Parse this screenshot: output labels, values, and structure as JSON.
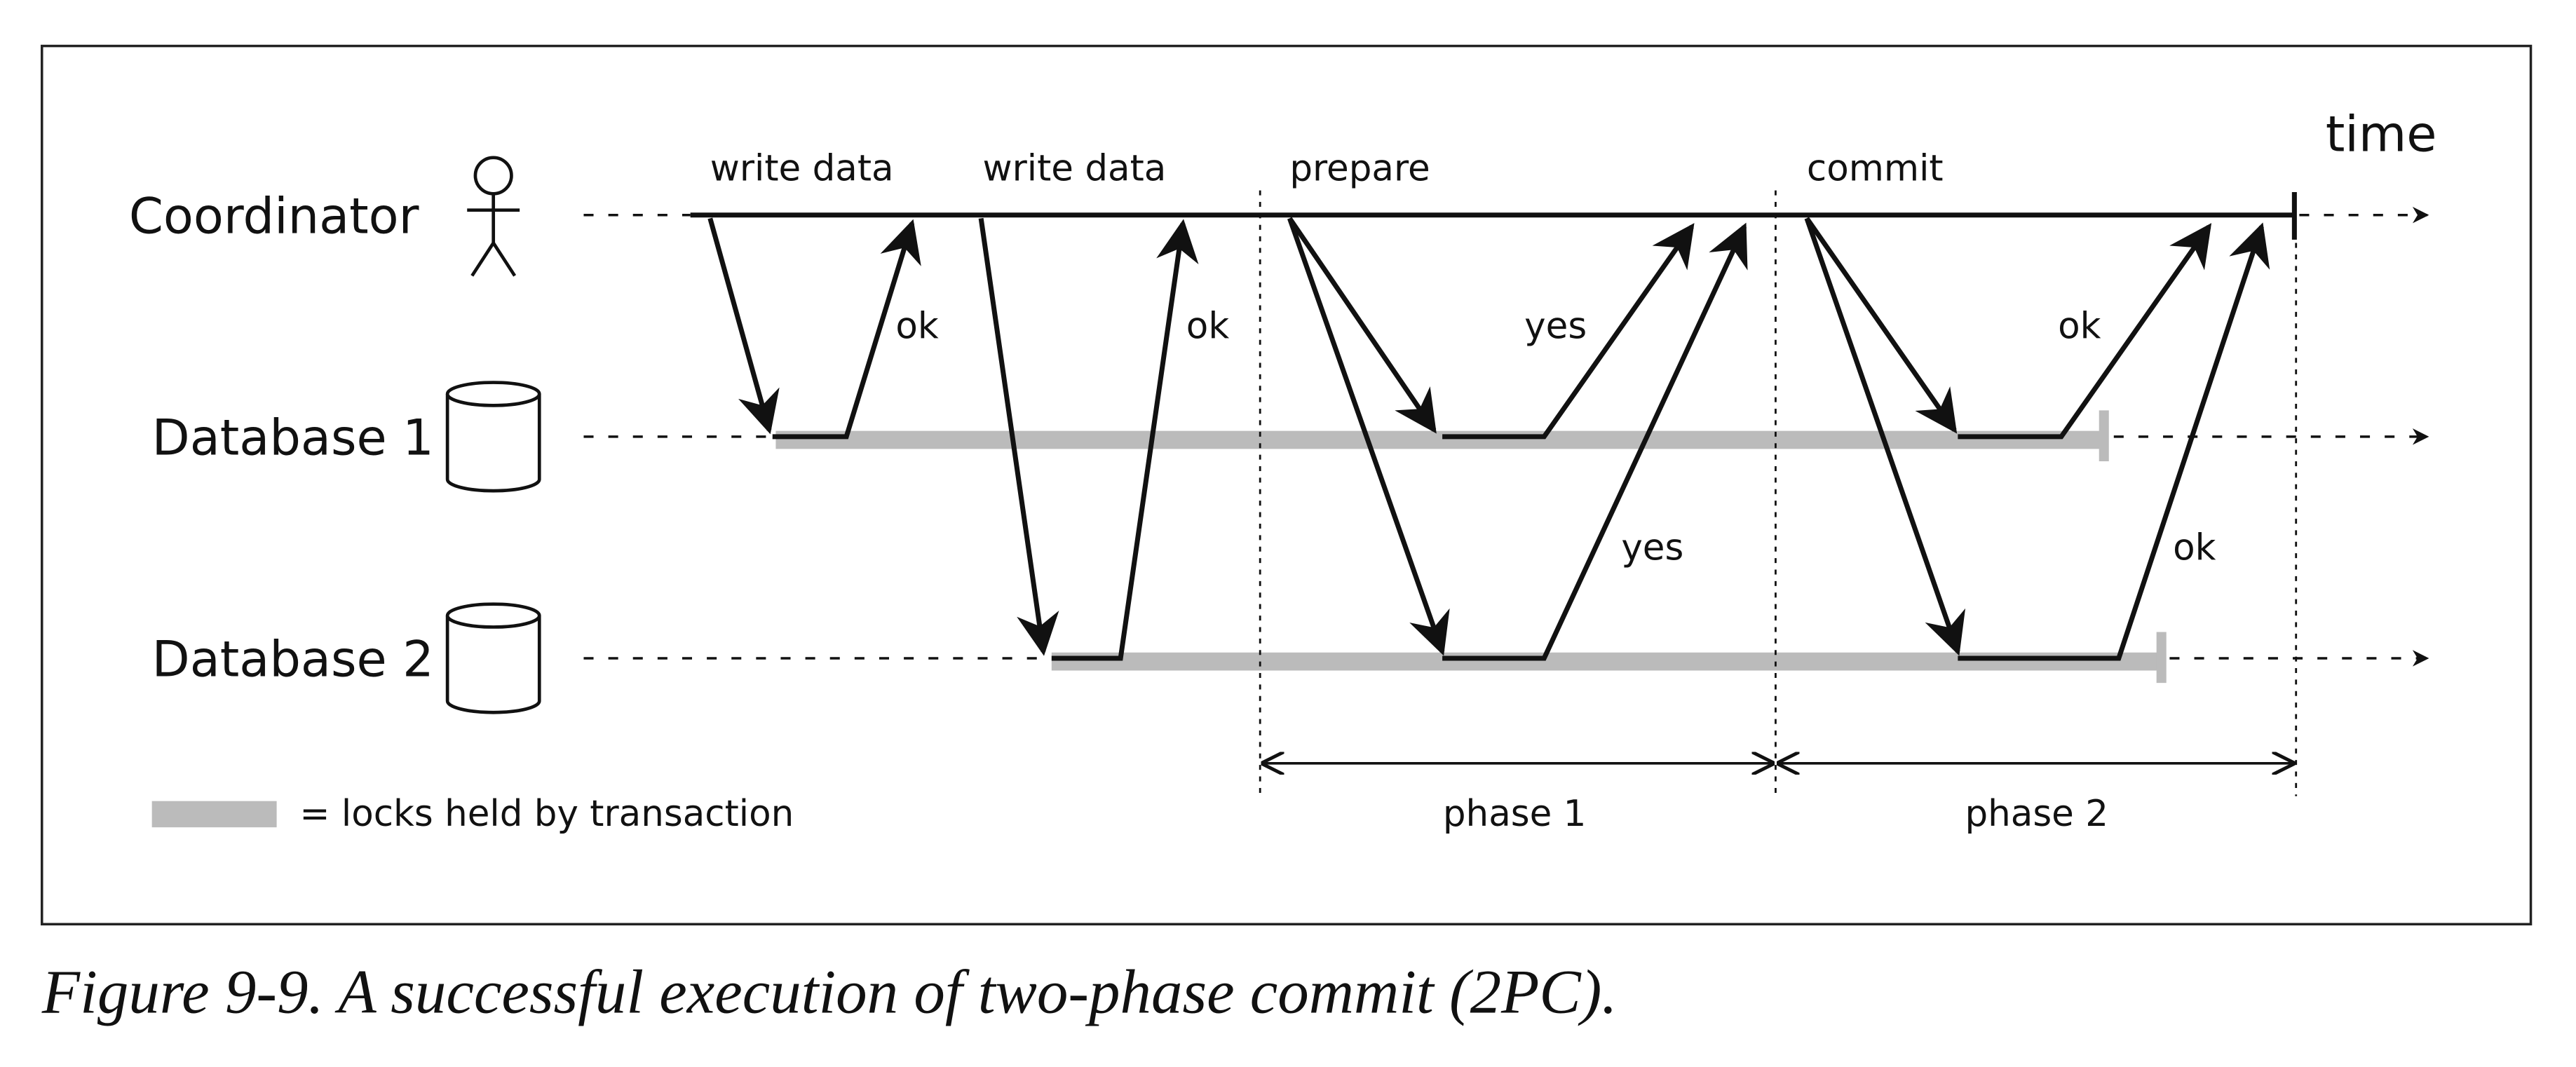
{
  "actors": [
    {
      "label": "Coordinator"
    },
    {
      "label": "Database 1"
    },
    {
      "label": "Database 2"
    }
  ],
  "time_label": "time",
  "messages": [
    "write data",
    "write data",
    "prepare",
    "commit"
  ],
  "replies": [
    "ok",
    "ok",
    "yes",
    "yes",
    "ok",
    "ok"
  ],
  "phases": [
    "phase 1",
    "phase 2"
  ],
  "legend": "= locks held by transaction",
  "caption": "Figure 9-9. A successful execution of two-phase commit (2PC)."
}
